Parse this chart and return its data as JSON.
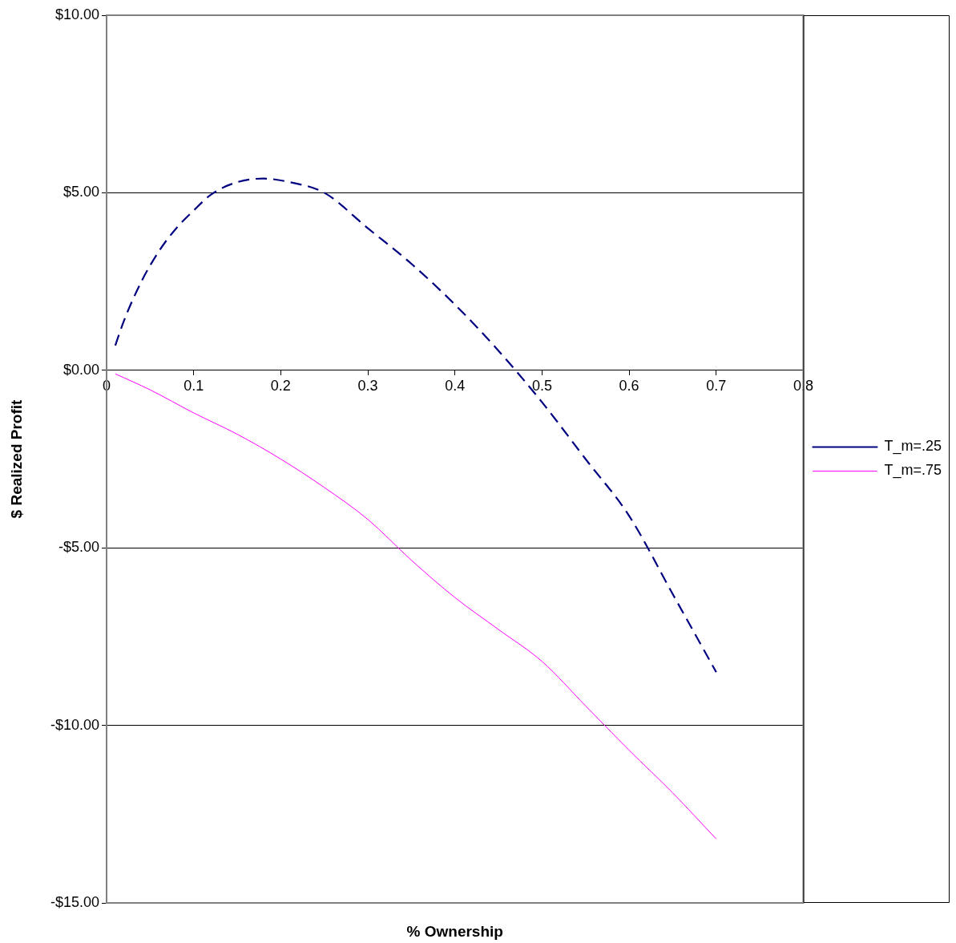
{
  "chart_data": {
    "type": "line",
    "xlabel": "% Ownership",
    "ylabel": "$ Realized Profit",
    "xlim": [
      0,
      0.8
    ],
    "xticks": [
      0,
      0.1,
      0.2,
      0.3,
      0.4,
      0.5,
      0.6,
      0.7,
      0.8
    ],
    "ylim": [
      -15,
      10
    ],
    "yticks": [
      {
        "value": -15,
        "label": "-$15.00"
      },
      {
        "value": -10,
        "label": "-$10.00"
      },
      {
        "value": -5,
        "label": "-$5.00"
      },
      {
        "value": 0,
        "label": "$0.00"
      },
      {
        "value": 5,
        "label": "$5.00"
      },
      {
        "value": 10,
        "label": "$10.00"
      }
    ],
    "grid": "y",
    "legend": "right",
    "marker": "none",
    "series": [
      {
        "name": "T_m=.25",
        "color": "#000080",
        "line_style": "dashed",
        "x": [
          0.01,
          0.02,
          0.04,
          0.06,
          0.08,
          0.1,
          0.12,
          0.15,
          0.18,
          0.21,
          0.25,
          0.3,
          0.35,
          0.4,
          0.45,
          0.5,
          0.55,
          0.6,
          0.65,
          0.7
        ],
        "values": [
          0.7,
          1.4,
          2.5,
          3.35,
          4.0,
          4.5,
          4.95,
          5.3,
          5.4,
          5.3,
          5.0,
          4.0,
          3.0,
          1.85,
          0.55,
          -0.9,
          -2.5,
          -4.1,
          -6.3,
          -8.5
        ]
      },
      {
        "name": "T_m=.75",
        "color": "#ff00ff",
        "line_style": "solid",
        "x": [
          0.01,
          0.05,
          0.1,
          0.15,
          0.2,
          0.25,
          0.3,
          0.35,
          0.4,
          0.45,
          0.5,
          0.55,
          0.6,
          0.65,
          0.7
        ],
        "values": [
          -0.1,
          -0.55,
          -1.2,
          -1.8,
          -2.5,
          -3.3,
          -4.2,
          -5.35,
          -6.4,
          -7.3,
          -8.2,
          -9.45,
          -10.7,
          -11.9,
          -13.2
        ]
      }
    ]
  }
}
